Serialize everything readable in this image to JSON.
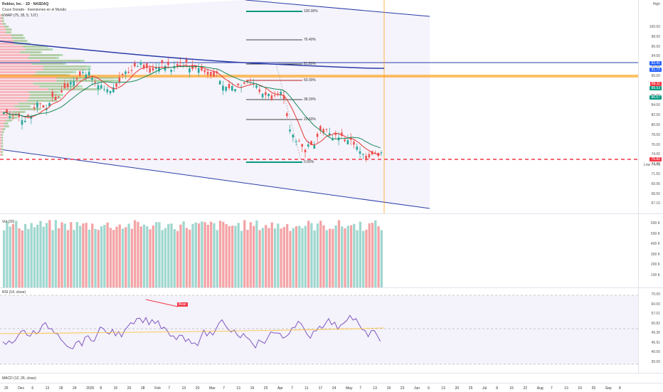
{
  "legend": {
    "symbol": "Roblox, Inc. · 1D · NASDAQ",
    "indicator1": "Cruce Dorado - Inversiones en el Mundo",
    "indicator2": "VWAP (75, 35, 5, 'LO')"
  },
  "price_axis": {
    "header": "High",
    "ticks": [
      "100.00",
      "98.00",
      "96.00",
      "94.00",
      "92.00",
      "90.00",
      "88.00",
      "86.00",
      "84.00",
      "82.00",
      "80.00",
      "78.00",
      "76.00",
      "74.00",
      "73.00",
      "71.50",
      "69.90",
      "68.50",
      "67.10"
    ],
    "low_label": "Low",
    "low_value": "74.71",
    "badges": [
      {
        "text": "92.41",
        "color": "#2962ff"
      },
      {
        "text": "91.72",
        "color": "#2962ff"
      },
      {
        "text": "89.11",
        "color": "#f23645"
      },
      {
        "text": "88.53",
        "color": "#089981"
      },
      {
        "text": "86.67",
        "color": "#089981"
      },
      {
        "text": "75.82",
        "color": "#f23645"
      }
    ]
  },
  "fib_labels": [
    "100.00%",
    "76.40%",
    "61.80%",
    "50.00%",
    "38.20%",
    "23.60%",
    "0.00%"
  ],
  "volume": {
    "label": "Vol (20)",
    "ticks": [
      "600 K",
      "500 K",
      "400 K",
      "300 K",
      "200 K",
      "100 K"
    ]
  },
  "rsi": {
    "label": "RSI (14, close)",
    "ticks": [
      "70.00",
      "60.00",
      "57.01",
      "50.82",
      "49.36",
      "46.91",
      "40.00",
      "30.00"
    ],
    "bear_tag": "Bear",
    "value_badge": "50.82",
    "value_badge2": "49.36"
  },
  "macd": {
    "label": "MACD (12, 26, close)"
  },
  "time_axis": [
    "25",
    "Dec",
    "6",
    "13",
    "18",
    "24",
    "2025",
    "8",
    "15",
    "20",
    "28",
    "Feb",
    "7",
    "13",
    "20",
    "Mar",
    "7",
    "13",
    "19",
    "25",
    "Apr",
    "7",
    "11",
    "17",
    "24",
    "May",
    "7",
    "13",
    "19",
    "23",
    "Jun",
    "6",
    "13",
    "20",
    "25",
    "Jul",
    "8",
    "15",
    "22",
    "Aug",
    "7",
    "13",
    "19",
    "25",
    "Sep",
    "8"
  ],
  "colors": {
    "up": "#26a69a",
    "down": "#ef5350",
    "blue": "#2a3ea8",
    "orange": "#ff9800"
  }
}
